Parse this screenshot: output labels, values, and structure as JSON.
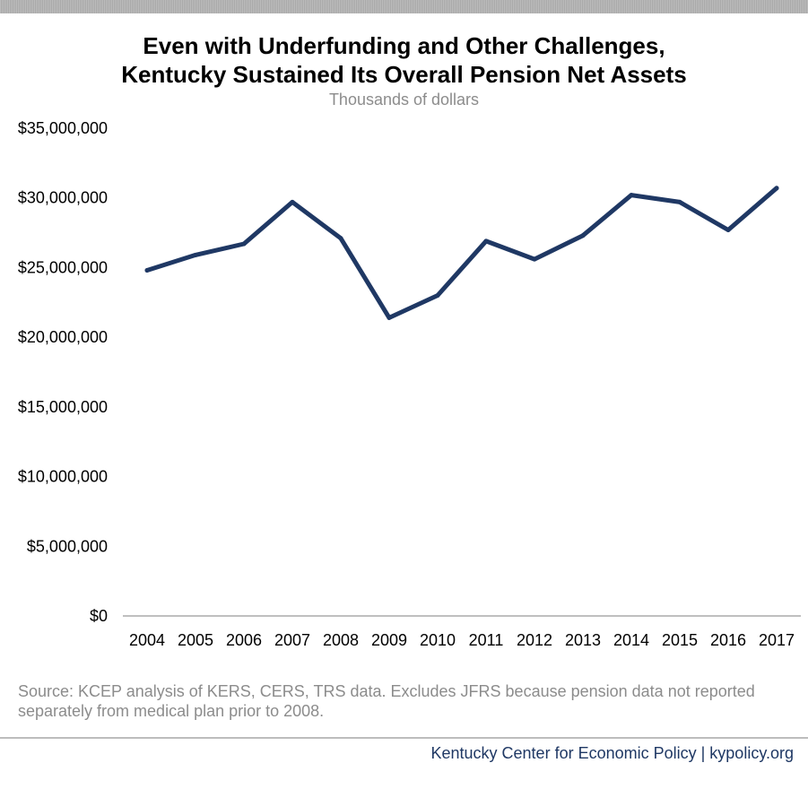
{
  "chart_data": {
    "type": "line",
    "title_line1": "Even with Underfunding and Other Challenges,",
    "title_line2": "Kentucky Sustained Its Overall Pension Net Assets",
    "subtitle": "Thousands of dollars",
    "xlabel": "",
    "ylabel": "",
    "categories": [
      "2004",
      "2005",
      "2006",
      "2007",
      "2008",
      "2009",
      "2010",
      "2011",
      "2012",
      "2013",
      "2014",
      "2015",
      "2016",
      "2017"
    ],
    "series": [
      {
        "values": [
          24800000,
          25900000,
          26700000,
          29700000,
          27100000,
          21400000,
          23000000,
          26900000,
          25600000,
          27300000,
          30200000,
          29700000,
          27700000,
          30700000
        ],
        "color": "#1f3864"
      }
    ],
    "ylim": [
      0,
      35000000
    ],
    "yticks": [
      0,
      5000000,
      10000000,
      15000000,
      20000000,
      25000000,
      30000000,
      35000000
    ],
    "ytick_labels": [
      "$0",
      "$5,000,000",
      "$10,000,000",
      "$15,000,000",
      "$20,000,000",
      "$25,000,000",
      "$30,000,000",
      "$35,000,000"
    ],
    "grid": false,
    "legend": "none"
  },
  "source_text": "Source: KCEP analysis of KERS, CERS, TRS data. Excludes JFRS because pension data not reported separately from medical plan prior to 2008.",
  "footer_text": "Kentucky Center for Economic Policy | kypolicy.org",
  "colors": {
    "line": "#1f3864",
    "axis": "#bfbfbf",
    "muted_text": "#8c8c8c",
    "footer_text": "#1f3864"
  }
}
